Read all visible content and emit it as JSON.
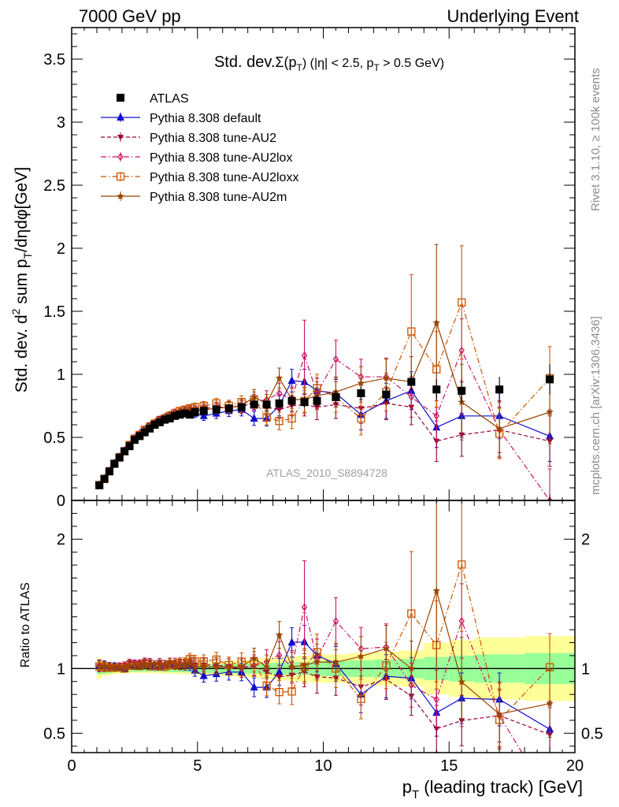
{
  "header": {
    "left": "7000 GeV pp",
    "right": "Underlying Event"
  },
  "side_labels": {
    "rivet": "Rivet 3.1.10, ≥ 100k events",
    "mcplots": "mcplots.cern.ch [arXiv:1306.3436]"
  },
  "analysis_id": "ATLAS_2010_S8894728",
  "chart_data": [
    {
      "type": "line",
      "panel": "main",
      "title": "Std. dev.Σ(pT) (|η| < 2.5, pT > 0.5 GeV)",
      "title_parts": {
        "a": "Std. dev.",
        "b": "Σ(p",
        "c": "T",
        "d": ") (|η| < 2.5, p",
        "e": "T",
        "f": " > 0.5 GeV)"
      },
      "ylabel": "Std. dev. d² sum pT/dηdφ[GeV]",
      "ylabel_parts": {
        "a": "Std. dev. d",
        "b": "2",
        "c": " sum p",
        "d": "T",
        "e": "/dηdφ[GeV]"
      },
      "xlim": [
        0,
        20
      ],
      "ylim": [
        0,
        3.75
      ],
      "yticks": [
        0,
        0.5,
        1,
        1.5,
        2,
        2.5,
        3,
        3.5
      ],
      "ytick_labels": [
        "0",
        "0.5",
        "1",
        "1.5",
        "2",
        "2.5",
        "3",
        "3.5"
      ],
      "legend_position": "top-left",
      "x": [
        1.1,
        1.3,
        1.5,
        1.7,
        1.9,
        2.1,
        2.3,
        2.5,
        2.7,
        2.9,
        3.1,
        3.3,
        3.5,
        3.7,
        3.9,
        4.1,
        4.3,
        4.5,
        4.7,
        4.9,
        5.25,
        5.75,
        6.25,
        6.75,
        7.25,
        7.75,
        8.25,
        8.75,
        9.25,
        9.75,
        10.5,
        11.5,
        12.5,
        13.5,
        14.5,
        15.5,
        17.0,
        19.0
      ],
      "series": [
        {
          "name": "ATLAS",
          "color": "#000000",
          "marker": "square-filled",
          "line": "none",
          "values": [
            0.12,
            0.17,
            0.23,
            0.29,
            0.34,
            0.39,
            0.43,
            0.48,
            0.51,
            0.54,
            0.57,
            0.6,
            0.62,
            0.64,
            0.65,
            0.67,
            0.68,
            0.69,
            0.68,
            0.7,
            0.71,
            0.72,
            0.73,
            0.74,
            0.76,
            0.76,
            0.77,
            0.79,
            0.78,
            0.79,
            0.82,
            0.85,
            0.84,
            0.94,
            0.88,
            0.87,
            0.88,
            0.96
          ],
          "errors": [
            0.005,
            0.005,
            0.006,
            0.007,
            0.008,
            0.009,
            0.01,
            0.01,
            0.01,
            0.01,
            0.012,
            0.012,
            0.013,
            0.014,
            0.015,
            0.016,
            0.017,
            0.018,
            0.019,
            0.02,
            0.02,
            0.022,
            0.024,
            0.026,
            0.028,
            0.03,
            0.035,
            0.04,
            0.04,
            0.045,
            0.05,
            0.055,
            0.06,
            0.07,
            0.08,
            0.09,
            0.1,
            0.12
          ]
        },
        {
          "name": "Pythia 8.308 default",
          "color": "#1010cc",
          "marker": "triangle-up",
          "line": "solid",
          "values": [
            0.123,
            0.174,
            0.234,
            0.295,
            0.345,
            0.39,
            0.44,
            0.49,
            0.53,
            0.56,
            0.59,
            0.61,
            0.63,
            0.66,
            0.67,
            0.69,
            0.7,
            0.71,
            0.7,
            0.69,
            0.67,
            0.69,
            0.71,
            0.72,
            0.65,
            0.65,
            0.75,
            0.95,
            0.94,
            0.87,
            0.85,
            0.68,
            0.79,
            0.87,
            0.58,
            0.67,
            0.67,
            0.51
          ],
          "errors": [
            0.005,
            0.006,
            0.007,
            0.008,
            0.009,
            0.01,
            0.011,
            0.012,
            0.013,
            0.014,
            0.015,
            0.016,
            0.018,
            0.02,
            0.022,
            0.024,
            0.026,
            0.028,
            0.03,
            0.032,
            0.035,
            0.04,
            0.045,
            0.05,
            0.055,
            0.06,
            0.08,
            0.09,
            0.1,
            0.1,
            0.11,
            0.12,
            0.14,
            0.15,
            0.16,
            0.17,
            0.18,
            0.2
          ]
        },
        {
          "name": "Pythia 8.308 tune-AU2",
          "color": "#990033",
          "marker": "triangle-down",
          "line": "dashed",
          "values": [
            0.122,
            0.172,
            0.232,
            0.293,
            0.343,
            0.4,
            0.45,
            0.5,
            0.53,
            0.57,
            0.6,
            0.62,
            0.65,
            0.66,
            0.68,
            0.69,
            0.7,
            0.71,
            0.72,
            0.72,
            0.73,
            0.74,
            0.74,
            0.75,
            0.77,
            0.74,
            0.72,
            0.75,
            0.76,
            0.74,
            0.76,
            0.73,
            0.77,
            0.74,
            0.47,
            0.52,
            0.56,
            0.47
          ],
          "errors": [
            0.005,
            0.006,
            0.007,
            0.008,
            0.009,
            0.01,
            0.011,
            0.012,
            0.013,
            0.014,
            0.015,
            0.016,
            0.018,
            0.02,
            0.022,
            0.024,
            0.026,
            0.028,
            0.03,
            0.032,
            0.035,
            0.04,
            0.045,
            0.05,
            0.055,
            0.06,
            0.07,
            0.08,
            0.09,
            0.1,
            0.11,
            0.12,
            0.13,
            0.14,
            0.16,
            0.17,
            0.18,
            0.2
          ]
        },
        {
          "name": "Pythia 8.308 tune-AU2lox",
          "color": "#cc1166",
          "marker": "diamond-open",
          "line": "dashdot",
          "values": [
            0.123,
            0.173,
            0.233,
            0.292,
            0.346,
            0.4,
            0.44,
            0.5,
            0.53,
            0.56,
            0.59,
            0.62,
            0.64,
            0.66,
            0.68,
            0.7,
            0.71,
            0.72,
            0.72,
            0.71,
            0.72,
            0.73,
            0.74,
            0.74,
            0.78,
            0.8,
            0.85,
            0.8,
            1.15,
            0.85,
            1.12,
            0.98,
            0.98,
            0.82,
            0.67,
            1.19,
            0.56,
            0.0
          ],
          "errors": [
            0.005,
            0.006,
            0.007,
            0.008,
            0.009,
            0.01,
            0.011,
            0.012,
            0.013,
            0.014,
            0.015,
            0.016,
            0.018,
            0.02,
            0.022,
            0.024,
            0.026,
            0.028,
            0.03,
            0.032,
            0.035,
            0.04,
            0.045,
            0.05,
            0.06,
            0.07,
            0.08,
            0.1,
            0.28,
            0.12,
            0.15,
            0.14,
            0.15,
            0.16,
            0.2,
            0.25,
            0.22,
            0.25
          ]
        },
        {
          "name": "Pythia 8.308 tune-AU2loxx",
          "color": "#cc5500",
          "marker": "square-open",
          "line": "dashdot",
          "values": [
            0.122,
            0.172,
            0.232,
            0.292,
            0.343,
            0.39,
            0.44,
            0.49,
            0.52,
            0.56,
            0.58,
            0.61,
            0.63,
            0.65,
            0.67,
            0.69,
            0.71,
            0.72,
            0.73,
            0.74,
            0.75,
            0.77,
            0.75,
            0.78,
            0.8,
            0.66,
            0.63,
            0.65,
            0.79,
            0.89,
            0.82,
            0.65,
            0.86,
            1.34,
            1.04,
            1.57,
            0.53,
            0.97
          ],
          "errors": [
            0.005,
            0.006,
            0.007,
            0.008,
            0.009,
            0.01,
            0.011,
            0.012,
            0.013,
            0.014,
            0.015,
            0.016,
            0.018,
            0.02,
            0.022,
            0.024,
            0.026,
            0.028,
            0.03,
            0.032,
            0.035,
            0.04,
            0.045,
            0.05,
            0.06,
            0.06,
            0.07,
            0.08,
            0.1,
            0.11,
            0.12,
            0.13,
            0.15,
            0.45,
            0.3,
            0.45,
            0.2,
            0.25
          ]
        },
        {
          "name": "Pythia 8.308 tune-AU2m",
          "color": "#994400",
          "marker": "star",
          "line": "solid",
          "values": [
            0.122,
            0.173,
            0.233,
            0.293,
            0.344,
            0.39,
            0.44,
            0.49,
            0.52,
            0.56,
            0.59,
            0.62,
            0.64,
            0.66,
            0.68,
            0.69,
            0.7,
            0.71,
            0.71,
            0.71,
            0.72,
            0.73,
            0.74,
            0.75,
            0.82,
            0.77,
            0.97,
            0.8,
            0.8,
            0.83,
            0.86,
            0.93,
            0.97,
            0.94,
            1.41,
            0.78,
            0.57,
            0.7
          ],
          "errors": [
            0.005,
            0.006,
            0.007,
            0.008,
            0.009,
            0.01,
            0.011,
            0.012,
            0.013,
            0.014,
            0.015,
            0.016,
            0.018,
            0.02,
            0.022,
            0.024,
            0.026,
            0.028,
            0.03,
            0.032,
            0.035,
            0.04,
            0.045,
            0.05,
            0.06,
            0.07,
            0.08,
            0.09,
            0.1,
            0.11,
            0.12,
            0.13,
            0.15,
            0.2,
            0.62,
            0.3,
            0.22,
            0.25
          ]
        }
      ]
    },
    {
      "type": "line",
      "panel": "ratio",
      "ylabel": "Ratio to ATLAS",
      "xlabel": "pT (leading track) [GeV]",
      "xlabel_parts": {
        "a": "p",
        "b": "T",
        "c": " (leading track) [GeV]"
      },
      "xlim": [
        0,
        20
      ],
      "ylim": [
        0.35,
        2.3
      ],
      "xticks": [
        0,
        5,
        10,
        15,
        20
      ],
      "xtick_labels": [
        "0",
        "5",
        "10",
        "15",
        "20"
      ],
      "yticks": [
        0.5,
        1,
        2
      ],
      "ytick_labels": [
        "0.5",
        "1",
        "2"
      ],
      "reference_line": 1,
      "bands": {
        "x_edges": [
          1.0,
          1.2,
          1.4,
          1.6,
          1.8,
          2.0,
          2.2,
          2.4,
          2.6,
          2.8,
          3.0,
          3.2,
          3.4,
          3.6,
          3.8,
          4.0,
          4.2,
          4.4,
          4.6,
          4.8,
          5.0,
          5.5,
          6.0,
          6.5,
          7.0,
          7.5,
          8.0,
          8.5,
          9.0,
          9.5,
          10.0,
          11.0,
          12.0,
          13.0,
          14.0,
          15.0,
          16.0,
          18.0,
          20.0
        ],
        "inner_half_width": [
          0.045,
          0.04,
          0.035,
          0.03,
          0.028,
          0.026,
          0.025,
          0.024,
          0.024,
          0.024,
          0.025,
          0.025,
          0.026,
          0.026,
          0.027,
          0.028,
          0.028,
          0.03,
          0.03,
          0.031,
          0.033,
          0.035,
          0.036,
          0.038,
          0.04,
          0.042,
          0.045,
          0.05,
          0.05,
          0.055,
          0.06,
          0.065,
          0.07,
          0.075,
          0.09,
          0.1,
          0.11,
          0.12
        ],
        "outer_half_width": [
          0.08,
          0.06,
          0.05,
          0.045,
          0.04,
          0.038,
          0.036,
          0.035,
          0.035,
          0.035,
          0.036,
          0.037,
          0.038,
          0.04,
          0.04,
          0.042,
          0.043,
          0.045,
          0.046,
          0.048,
          0.05,
          0.055,
          0.06,
          0.065,
          0.07,
          0.08,
          0.09,
          0.095,
          0.1,
          0.11,
          0.11,
          0.12,
          0.13,
          0.14,
          0.2,
          0.22,
          0.24,
          0.25
        ],
        "inner_color": "#99ff99",
        "outer_color": "#ffff99"
      }
    }
  ]
}
